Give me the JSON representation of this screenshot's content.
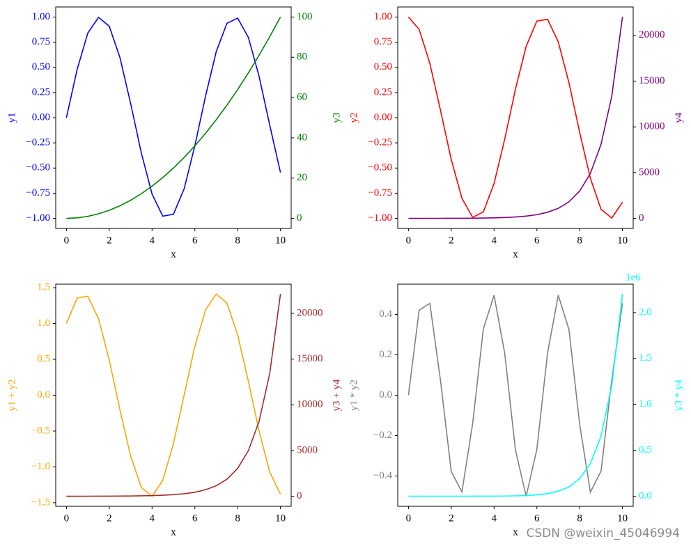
{
  "chart_data": [
    {
      "type": "line",
      "xlabel": "x",
      "ylabel": "y1",
      "y2label": "y3",
      "x": [
        0,
        0.5,
        1,
        1.5,
        2,
        2.5,
        3,
        3.5,
        4,
        4.5,
        5,
        5.5,
        6,
        6.5,
        7,
        7.5,
        8,
        8.5,
        9,
        9.5,
        10
      ],
      "xlim": [
        -0.5,
        10.5
      ],
      "xticks": [
        0,
        2,
        4,
        6,
        8,
        10
      ],
      "ylim": [
        -1.1,
        1.1
      ],
      "yticks": [
        {
          "value": -1,
          "label": "−1.00"
        },
        {
          "value": -0.75,
          "label": "−0.75"
        },
        {
          "value": -0.5,
          "label": "−0.50"
        },
        {
          "value": -0.25,
          "label": "−0.25"
        },
        {
          "value": 0,
          "label": "0.00"
        },
        {
          "value": 0.25,
          "label": "0.25"
        },
        {
          "value": 0.5,
          "label": "0.50"
        },
        {
          "value": 0.75,
          "label": "0.75"
        },
        {
          "value": 1,
          "label": "1.00"
        }
      ],
      "y2lim": [
        -5,
        105
      ],
      "y2ticks": [
        0,
        20,
        40,
        60,
        80,
        100
      ],
      "series": [
        {
          "color": "#0000ff",
          "values": [
            0,
            0.479,
            0.841,
            0.997,
            0.909,
            0.598,
            0.141,
            -0.351,
            -0.757,
            -0.978,
            -0.959,
            -0.706,
            -0.279,
            0.215,
            0.657,
            0.938,
            0.989,
            0.798,
            0.412,
            -0.075,
            -0.544
          ]
        },
        {
          "color": "#008000",
          "axis": "y2",
          "values": [
            0,
            0.25,
            1,
            2.25,
            4,
            6.25,
            9,
            12.25,
            16,
            20.25,
            25,
            30.25,
            36,
            42.25,
            49,
            56.25,
            64,
            72.25,
            81,
            90.25,
            100
          ]
        }
      ]
    },
    {
      "type": "line",
      "xlabel": "x",
      "ylabel": "y2",
      "y2label": "y4",
      "x": [
        0,
        0.5,
        1,
        1.5,
        2,
        2.5,
        3,
        3.5,
        4,
        4.5,
        5,
        5.5,
        6,
        6.5,
        7,
        7.5,
        8,
        8.5,
        9,
        9.5,
        10
      ],
      "xlim": [
        -0.5,
        10.5
      ],
      "xticks": [
        0,
        2,
        4,
        6,
        8,
        10
      ],
      "ylim": [
        -1.1,
        1.1
      ],
      "yticks": [
        {
          "value": -1,
          "label": "−1.00"
        },
        {
          "value": -0.75,
          "label": "−0.75"
        },
        {
          "value": -0.5,
          "label": "−0.50"
        },
        {
          "value": -0.25,
          "label": "−0.25"
        },
        {
          "value": 0,
          "label": "0.00"
        },
        {
          "value": 0.25,
          "label": "0.25"
        },
        {
          "value": 0.5,
          "label": "0.50"
        },
        {
          "value": 0.75,
          "label": "0.75"
        },
        {
          "value": 1,
          "label": "1.00"
        }
      ],
      "y2lim": [
        -1100,
        23100
      ],
      "y2ticks": [
        0,
        5000,
        10000,
        15000,
        20000
      ],
      "series": [
        {
          "color": "#ff0000",
          "values": [
            1,
            0.878,
            0.54,
            0.071,
            -0.416,
            -0.801,
            -0.99,
            -0.936,
            -0.654,
            -0.211,
            0.284,
            0.709,
            0.96,
            0.977,
            0.754,
            0.347,
            -0.146,
            -0.602,
            -0.911,
            -0.997,
            -0.839
          ]
        },
        {
          "color": "#800080",
          "axis": "y2",
          "values": [
            1,
            1.65,
            2.72,
            4.48,
            7.39,
            12.18,
            20.09,
            33.12,
            54.6,
            90.02,
            148.4,
            244.7,
            403.4,
            665.1,
            1096.6,
            1808,
            2981,
            4914.8,
            8103.1,
            13359.7,
            22026.5
          ]
        }
      ]
    },
    {
      "type": "line",
      "xlabel": "x",
      "ylabel": "y1 + y2",
      "y2label": "y3 + y4",
      "x": [
        0,
        0.5,
        1,
        1.5,
        2,
        2.5,
        3,
        3.5,
        4,
        4.5,
        5,
        5.5,
        6,
        6.5,
        7,
        7.5,
        8,
        8.5,
        9,
        9.5,
        10
      ],
      "xlim": [
        -0.5,
        10.5
      ],
      "xticks": [
        0,
        2,
        4,
        6,
        8,
        10
      ],
      "ylim": [
        -1.55,
        1.55
      ],
      "yticks": [
        {
          "value": -1.5,
          "label": "−1.5"
        },
        {
          "value": -1,
          "label": "−1.0"
        },
        {
          "value": -0.5,
          "label": "−0.5"
        },
        {
          "value": 0,
          "label": "0.0"
        },
        {
          "value": 0.5,
          "label": "0.5"
        },
        {
          "value": 1,
          "label": "1.0"
        },
        {
          "value": 1.5,
          "label": "1.5"
        }
      ],
      "y2lim": [
        -1100,
        23200
      ],
      "y2ticks": [
        0,
        5000,
        10000,
        15000,
        20000
      ],
      "series": [
        {
          "color": "#ffa500",
          "values": [
            1,
            1.357,
            1.381,
            1.068,
            0.493,
            -0.203,
            -0.849,
            -1.287,
            -1.411,
            -1.189,
            -0.675,
            0.003,
            0.681,
            1.192,
            1.411,
            1.285,
            0.843,
            0.196,
            -0.499,
            -1.072,
            -1.383
          ]
        },
        {
          "color": "#a52a2a",
          "axis": "y2",
          "values": [
            1,
            1.9,
            3.72,
            6.73,
            11.39,
            18.43,
            29.09,
            45.37,
            70.6,
            110.27,
            173.4,
            274.95,
            439.4,
            707.35,
            1145.6,
            1864.25,
            3045,
            4987.05,
            8184.1,
            13449.95,
            22126.5
          ]
        }
      ]
    },
    {
      "type": "line",
      "xlabel": "x",
      "ylabel": "y1 * y2",
      "y2label": "y3 * y4",
      "y2_offset": "1e6",
      "x": [
        0,
        0.5,
        1,
        1.5,
        2,
        2.5,
        3,
        3.5,
        4,
        4.5,
        5,
        5.5,
        6,
        6.5,
        7,
        7.5,
        8,
        8.5,
        9,
        9.5,
        10
      ],
      "xlim": [
        -0.5,
        10.5
      ],
      "xticks": [
        0,
        2,
        4,
        6,
        8,
        10
      ],
      "ylim": [
        -0.55,
        0.55
      ],
      "yticks": [
        {
          "value": -0.4,
          "label": "−0.4"
        },
        {
          "value": -0.2,
          "label": "−0.2"
        },
        {
          "value": 0,
          "label": "0.0"
        },
        {
          "value": 0.2,
          "label": "0.2"
        },
        {
          "value": 0.4,
          "label": "0.4"
        }
      ],
      "y2lim": [
        -110000,
        2310000
      ],
      "y2ticks": [
        {
          "value": 0,
          "label": "0.0"
        },
        {
          "value": 500000,
          "label": "0.5"
        },
        {
          "value": 1000000,
          "label": "1.0"
        },
        {
          "value": 1500000,
          "label": "1.5"
        },
        {
          "value": 2000000,
          "label": "2.0"
        }
      ],
      "series": [
        {
          "color": "#808080",
          "values": [
            0,
            0.421,
            0.455,
            0.071,
            -0.378,
            -0.479,
            -0.14,
            0.329,
            0.495,
            0.206,
            -0.272,
            -0.5,
            -0.268,
            0.21,
            0.495,
            0.325,
            -0.144,
            -0.48,
            -0.375,
            0.075,
            0.456
          ]
        },
        {
          "color": "#00ffff",
          "axis": "y2",
          "values": [
            0,
            0.41,
            2.72,
            10.08,
            29.56,
            76.14,
            180.8,
            405.7,
            873.6,
            1822.8,
            3710,
            7402,
            14523,
            28102,
            53735,
            101702,
            190781,
            355092,
            656350,
            1205713,
            2202650
          ]
        }
      ]
    }
  ],
  "watermark": "CSDN @weixin_45046994"
}
